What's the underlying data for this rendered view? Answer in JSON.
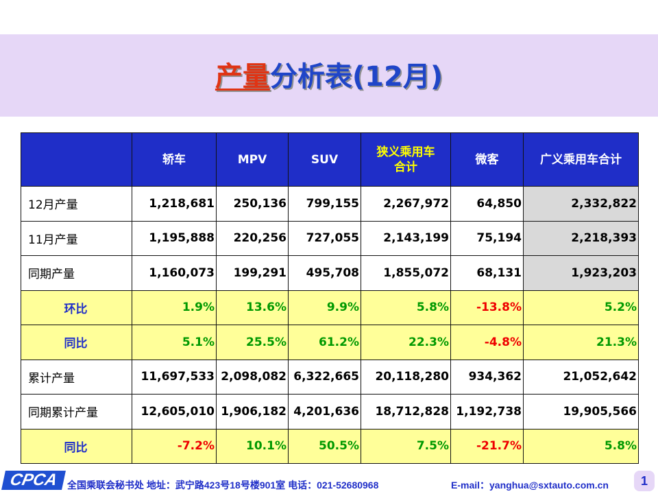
{
  "title": {
    "highlight": "产量",
    "rest": "分析表(12月)"
  },
  "table": {
    "headers": [
      "",
      "轿车",
      "MPV",
      "SUV",
      "狭义乘用车\n合计",
      "微客",
      "广义乘用车合计"
    ],
    "rows": [
      {
        "label": "12月产量",
        "values": [
          "1,218,681",
          "250,136",
          "799,155",
          "2,267,972",
          "64,850",
          "2,332,822"
        ]
      },
      {
        "label": "11月产量",
        "values": [
          "1,195,888",
          "220,256",
          "727,055",
          "2,143,199",
          "75,194",
          "2,218,393"
        ]
      },
      {
        "label": "同期产量",
        "values": [
          "1,160,073",
          "199,291",
          "495,708",
          "1,855,072",
          "68,131",
          "1,923,203"
        ]
      },
      {
        "label": "环比",
        "values": [
          "1.9%",
          "13.6%",
          "9.9%",
          "5.8%",
          "-13.8%",
          "5.2%"
        ]
      },
      {
        "label": "同比",
        "values": [
          "5.1%",
          "25.5%",
          "61.2%",
          "22.3%",
          "-4.8%",
          "21.3%"
        ]
      },
      {
        "label": "累计产量",
        "values": [
          "11,697,533",
          "2,098,082",
          "6,322,665",
          "20,118,280",
          "934,362",
          "21,052,642"
        ]
      },
      {
        "label": "同期累计产量",
        "values": [
          "12,605,010",
          "1,906,182",
          "4,201,636",
          "18,712,828",
          "1,192,738",
          "19,905,566"
        ]
      },
      {
        "label": "同比",
        "values": [
          "-7.2%",
          "10.1%",
          "50.5%",
          "7.5%",
          "-21.7%",
          "5.8%"
        ]
      }
    ]
  },
  "footer": {
    "logo": "CPCA",
    "info": "全国乘联会秘书处  地址：武宁路423号18号楼901室   电话：021-52680968",
    "email": "E-mail：yanghua@sxtauto.com.cn",
    "page": "1"
  },
  "colors": {
    "header_bg": "#1f2ec8",
    "title": "#1f45c8",
    "title_highlight": "#e03414",
    "band": "#e6d7f7",
    "positive": "#009900",
    "negative": "#ee0000",
    "ratio_row_bg": "#ffff99"
  }
}
